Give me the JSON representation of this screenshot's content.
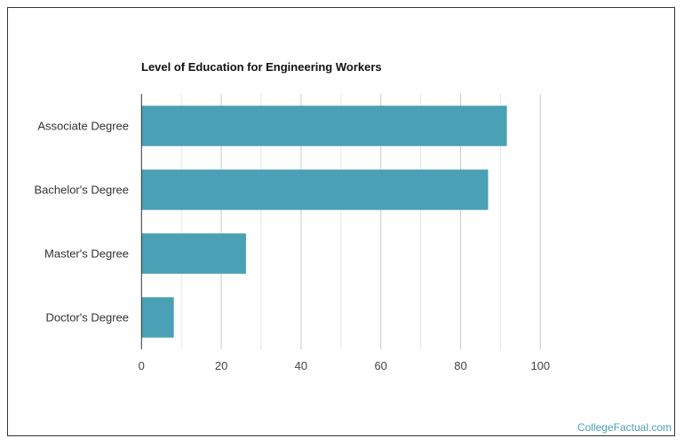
{
  "chart_data": {
    "type": "bar",
    "orientation": "horizontal",
    "title": "Level of Education for Engineering Workers",
    "categories": [
      "Associate Degree",
      "Bachelor's Degree",
      "Master's Degree",
      "Doctor's Degree"
    ],
    "values": [
      91.6,
      86.9,
      26.2,
      8.1
    ],
    "xlim": [
      0,
      100
    ],
    "xticks": [
      0,
      20,
      40,
      60,
      80,
      100
    ],
    "grid": true,
    "bar_color": "#4aa0b5"
  },
  "watermark": "CollegeFactual.com"
}
